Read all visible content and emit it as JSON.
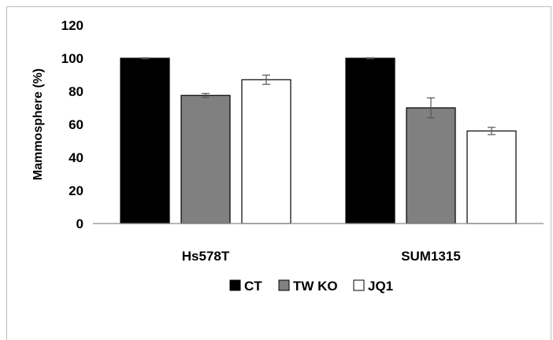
{
  "chart_data": {
    "type": "bar",
    "title": "",
    "xlabel": "",
    "ylabel": "Mammosphere  (%)",
    "ylim": [
      0,
      120
    ],
    "yticks": [
      0,
      20,
      40,
      60,
      80,
      100,
      120
    ],
    "categories": [
      "Hs578T",
      "SUM1315"
    ],
    "series": [
      {
        "name": "CT",
        "values": [
          100,
          100
        ],
        "errors": [
          0.3,
          0.3
        ],
        "color": "#000000"
      },
      {
        "name": "TW KO",
        "values": [
          77.5,
          70
        ],
        "errors": [
          1.2,
          6
        ],
        "color": "#808080"
      },
      {
        "name": "JQ1",
        "values": [
          87,
          56
        ],
        "errors": [
          2.8,
          2.2
        ],
        "color": "#ffffff"
      }
    ],
    "grid": false,
    "legend": "bottom"
  }
}
